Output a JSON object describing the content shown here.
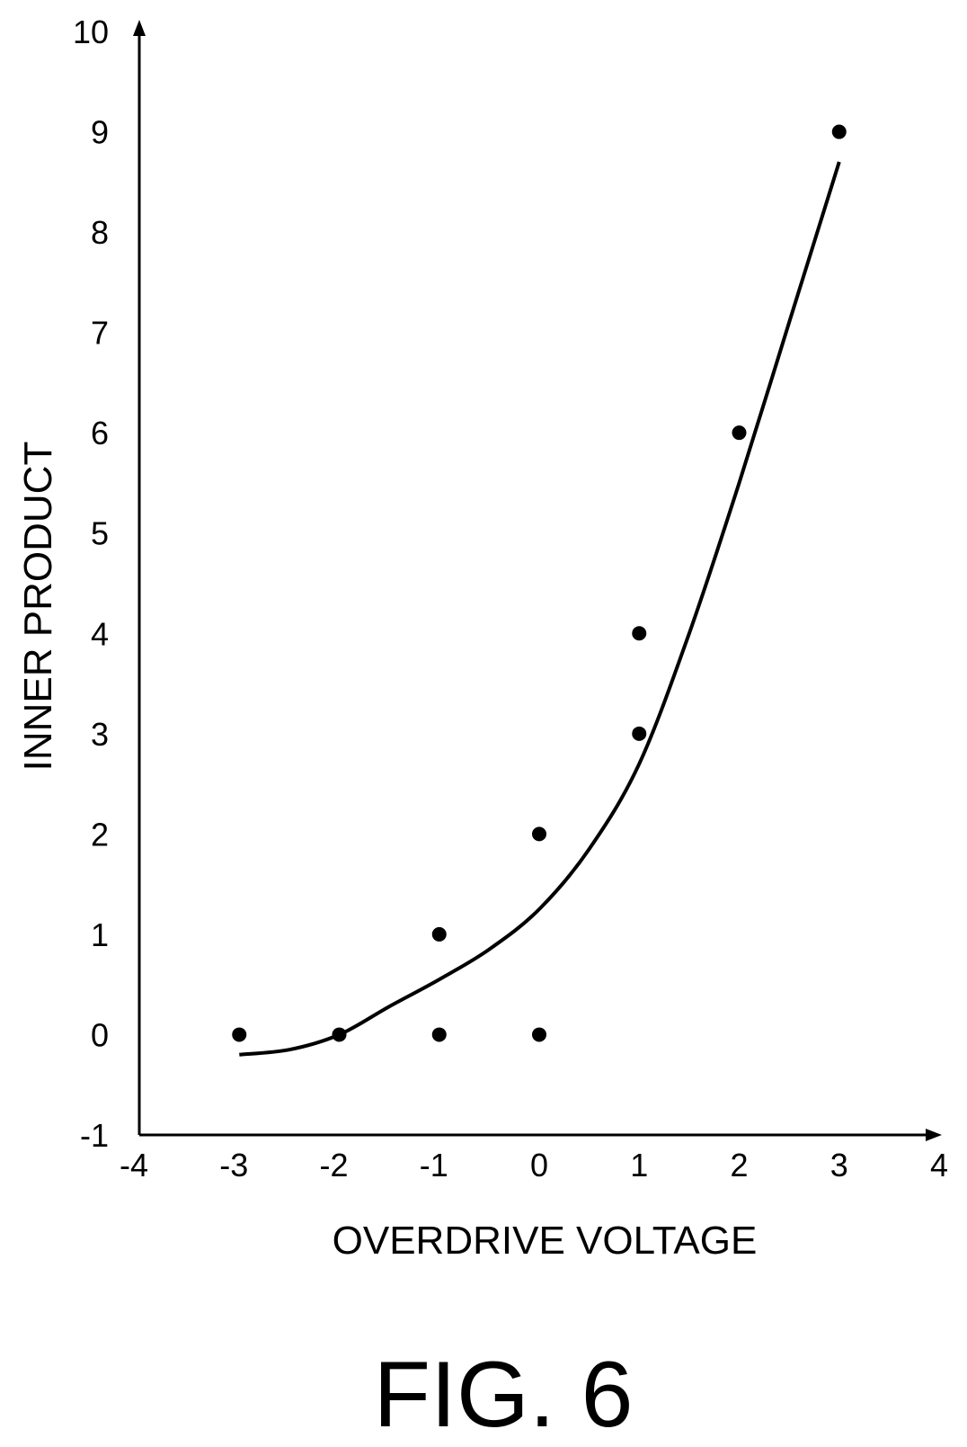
{
  "figure_caption": "FIG. 6",
  "chart_data": {
    "type": "scatter",
    "title": "",
    "xlabel": "OVERDRIVE VOLTAGE",
    "ylabel": "INNER PRODUCT",
    "xlim": [
      -4,
      4
    ],
    "ylim": [
      -1,
      10
    ],
    "x_ticks": [
      "-4",
      "-3",
      "-2",
      "-1",
      "0",
      "1",
      "2",
      "3",
      "4"
    ],
    "y_ticks": [
      "-1",
      "0",
      "1",
      "2",
      "3",
      "4",
      "5",
      "6",
      "7",
      "8",
      "9",
      "10"
    ],
    "grid": false,
    "legend": false,
    "points": [
      {
        "x": -3,
        "y": 0
      },
      {
        "x": -2,
        "y": 0
      },
      {
        "x": -1,
        "y": 0
      },
      {
        "x": -1,
        "y": 1
      },
      {
        "x": 0,
        "y": 0
      },
      {
        "x": 0,
        "y": 2
      },
      {
        "x": 1,
        "y": 3
      },
      {
        "x": 1,
        "y": 4
      },
      {
        "x": 2,
        "y": 6
      },
      {
        "x": 3,
        "y": 9
      }
    ],
    "fit_curve": {
      "x": [
        -3,
        -2.5,
        -2,
        -1.5,
        -1,
        -0.5,
        0,
        0.5,
        1,
        1.5,
        2,
        2.5,
        3
      ],
      "y": [
        -0.2,
        -0.15,
        0.0,
        0.28,
        0.55,
        0.85,
        1.25,
        1.85,
        2.7,
        4.0,
        5.5,
        7.1,
        8.7
      ]
    },
    "colors": {
      "marker": "#000000",
      "line": "#000000",
      "axis": "#000000",
      "background": "#ffffff"
    }
  }
}
